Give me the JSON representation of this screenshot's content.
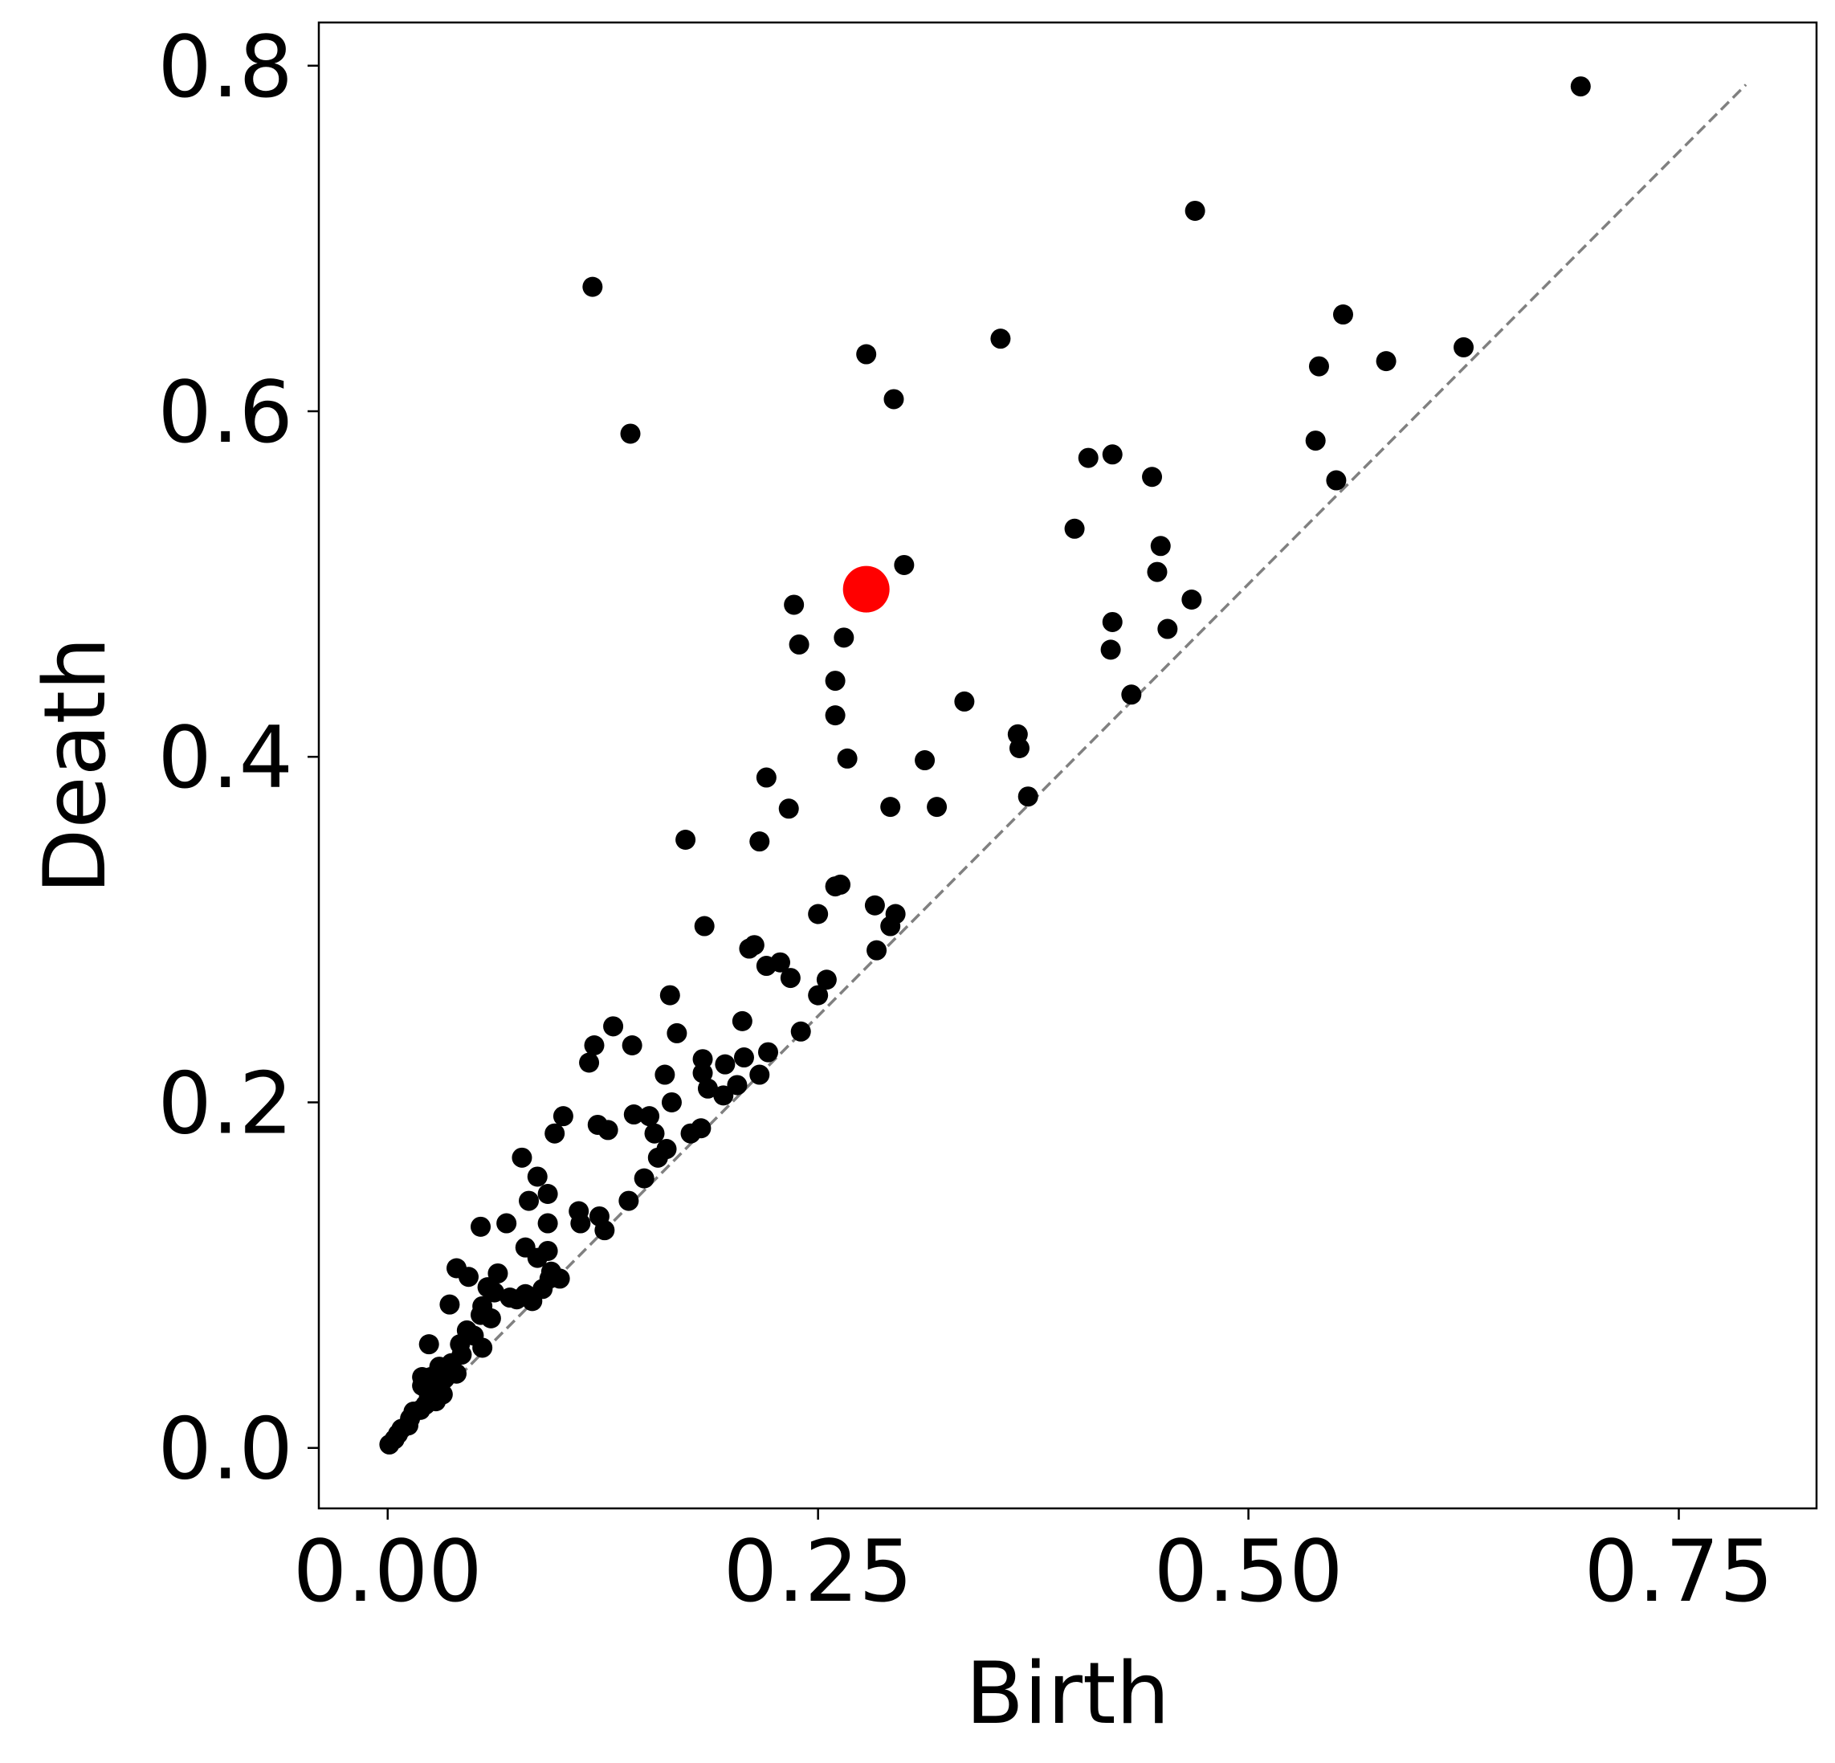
{
  "chart_data": {
    "type": "scatter",
    "title": "",
    "xlabel": "Birth",
    "ylabel": "Death",
    "xlim": [
      -0.04,
      0.83
    ],
    "ylim": [
      -0.035,
      0.825
    ],
    "x_ticks": [
      {
        "value": 0.0,
        "label": "0.00"
      },
      {
        "value": 0.25,
        "label": "0.25"
      },
      {
        "value": 0.5,
        "label": "0.50"
      },
      {
        "value": 0.75,
        "label": "0.75"
      }
    ],
    "y_ticks": [
      {
        "value": 0.0,
        "label": "0.0"
      },
      {
        "value": 0.2,
        "label": "0.2"
      },
      {
        "value": 0.4,
        "label": "0.4"
      },
      {
        "value": 0.6,
        "label": "0.6"
      },
      {
        "value": 0.8,
        "label": "0.8"
      }
    ],
    "diagonal": {
      "from": 0.0,
      "to": 0.789,
      "style": "dashed",
      "color": "#808080"
    },
    "grid": false,
    "colors": {
      "points": "#000000",
      "highlight": "#ff0000"
    },
    "highlight_point": {
      "x": 0.278,
      "y": 0.497
    },
    "points": [
      [
        0.693,
        0.788
      ],
      [
        0.469,
        0.716
      ],
      [
        0.119,
        0.672
      ],
      [
        0.356,
        0.642
      ],
      [
        0.278,
        0.633
      ],
      [
        0.294,
        0.607
      ],
      [
        0.141,
        0.587
      ],
      [
        0.555,
        0.656
      ],
      [
        0.541,
        0.626
      ],
      [
        0.58,
        0.629
      ],
      [
        0.625,
        0.637
      ],
      [
        0.539,
        0.583
      ],
      [
        0.551,
        0.56
      ],
      [
        0.407,
        0.573
      ],
      [
        0.421,
        0.575
      ],
      [
        0.444,
        0.562
      ],
      [
        0.399,
        0.532
      ],
      [
        0.449,
        0.522
      ],
      [
        0.447,
        0.507
      ],
      [
        0.467,
        0.491
      ],
      [
        0.421,
        0.478
      ],
      [
        0.453,
        0.474
      ],
      [
        0.42,
        0.462
      ],
      [
        0.432,
        0.436
      ],
      [
        0.3,
        0.511
      ],
      [
        0.236,
        0.488
      ],
      [
        0.265,
        0.469
      ],
      [
        0.239,
        0.465
      ],
      [
        0.26,
        0.444
      ],
      [
        0.26,
        0.424
      ],
      [
        0.335,
        0.432
      ],
      [
        0.366,
        0.413
      ],
      [
        0.367,
        0.405
      ],
      [
        0.267,
        0.399
      ],
      [
        0.312,
        0.398
      ],
      [
        0.372,
        0.377
      ],
      [
        0.22,
        0.388
      ],
      [
        0.233,
        0.37
      ],
      [
        0.292,
        0.371
      ],
      [
        0.319,
        0.371
      ],
      [
        0.173,
        0.352
      ],
      [
        0.216,
        0.351
      ],
      [
        0.26,
        0.325
      ],
      [
        0.263,
        0.326
      ],
      [
        0.283,
        0.314
      ],
      [
        0.25,
        0.309
      ],
      [
        0.295,
        0.309
      ],
      [
        0.292,
        0.302
      ],
      [
        0.184,
        0.302
      ],
      [
        0.21,
        0.289
      ],
      [
        0.213,
        0.291
      ],
      [
        0.22,
        0.279
      ],
      [
        0.228,
        0.281
      ],
      [
        0.234,
        0.272
      ],
      [
        0.255,
        0.271
      ],
      [
        0.25,
        0.262
      ],
      [
        0.284,
        0.288
      ],
      [
        0.164,
        0.262
      ],
      [
        0.206,
        0.247
      ],
      [
        0.131,
        0.244
      ],
      [
        0.168,
        0.24
      ],
      [
        0.24,
        0.241
      ],
      [
        0.142,
        0.233
      ],
      [
        0.12,
        0.233
      ],
      [
        0.117,
        0.223
      ],
      [
        0.183,
        0.225
      ],
      [
        0.183,
        0.217
      ],
      [
        0.196,
        0.222
      ],
      [
        0.207,
        0.226
      ],
      [
        0.221,
        0.229
      ],
      [
        0.161,
        0.216
      ],
      [
        0.216,
        0.216
      ],
      [
        0.186,
        0.208
      ],
      [
        0.195,
        0.204
      ],
      [
        0.203,
        0.21
      ],
      [
        0.165,
        0.2
      ],
      [
        0.143,
        0.193
      ],
      [
        0.152,
        0.192
      ],
      [
        0.102,
        0.192
      ],
      [
        0.122,
        0.187
      ],
      [
        0.128,
        0.184
      ],
      [
        0.155,
        0.182
      ],
      [
        0.176,
        0.182
      ],
      [
        0.182,
        0.185
      ],
      [
        0.097,
        0.182
      ],
      [
        0.162,
        0.173
      ],
      [
        0.157,
        0.168
      ],
      [
        0.149,
        0.156
      ],
      [
        0.078,
        0.168
      ],
      [
        0.087,
        0.157
      ],
      [
        0.093,
        0.147
      ],
      [
        0.082,
        0.143
      ],
      [
        0.14,
        0.143
      ],
      [
        0.111,
        0.137
      ],
      [
        0.112,
        0.13
      ],
      [
        0.123,
        0.134
      ],
      [
        0.126,
        0.126
      ],
      [
        0.093,
        0.13
      ],
      [
        0.069,
        0.13
      ],
      [
        0.054,
        0.128
      ],
      [
        0.08,
        0.116
      ],
      [
        0.093,
        0.114
      ],
      [
        0.087,
        0.11
      ],
      [
        0.095,
        0.102
      ],
      [
        0.1,
        0.098
      ],
      [
        0.094,
        0.098
      ],
      [
        0.09,
        0.092
      ],
      [
        0.084,
        0.085
      ],
      [
        0.08,
        0.089
      ],
      [
        0.075,
        0.086
      ],
      [
        0.071,
        0.087
      ],
      [
        0.064,
        0.101
      ],
      [
        0.062,
        0.09
      ],
      [
        0.04,
        0.104
      ],
      [
        0.047,
        0.099
      ],
      [
        0.058,
        0.093
      ],
      [
        0.055,
        0.082
      ],
      [
        0.036,
        0.083
      ],
      [
        0.054,
        0.077
      ],
      [
        0.06,
        0.075
      ],
      [
        0.046,
        0.068
      ],
      [
        0.05,
        0.065
      ],
      [
        0.042,
        0.06
      ],
      [
        0.024,
        0.06
      ],
      [
        0.055,
        0.058
      ],
      [
        0.043,
        0.054
      ],
      [
        0.037,
        0.049
      ],
      [
        0.03,
        0.047
      ],
      [
        0.04,
        0.043
      ],
      [
        0.033,
        0.04
      ],
      [
        0.025,
        0.041
      ],
      [
        0.02,
        0.041
      ],
      [
        0.02,
        0.036
      ],
      [
        0.028,
        0.034
      ],
      [
        0.024,
        0.03
      ],
      [
        0.032,
        0.031
      ],
      [
        0.028,
        0.027
      ],
      [
        0.022,
        0.025
      ],
      [
        0.019,
        0.022
      ],
      [
        0.015,
        0.021
      ],
      [
        0.013,
        0.017
      ],
      [
        0.012,
        0.013
      ],
      [
        0.008,
        0.011
      ],
      [
        0.006,
        0.008
      ],
      [
        0.004,
        0.005
      ],
      [
        0.001,
        0.002
      ]
    ]
  }
}
